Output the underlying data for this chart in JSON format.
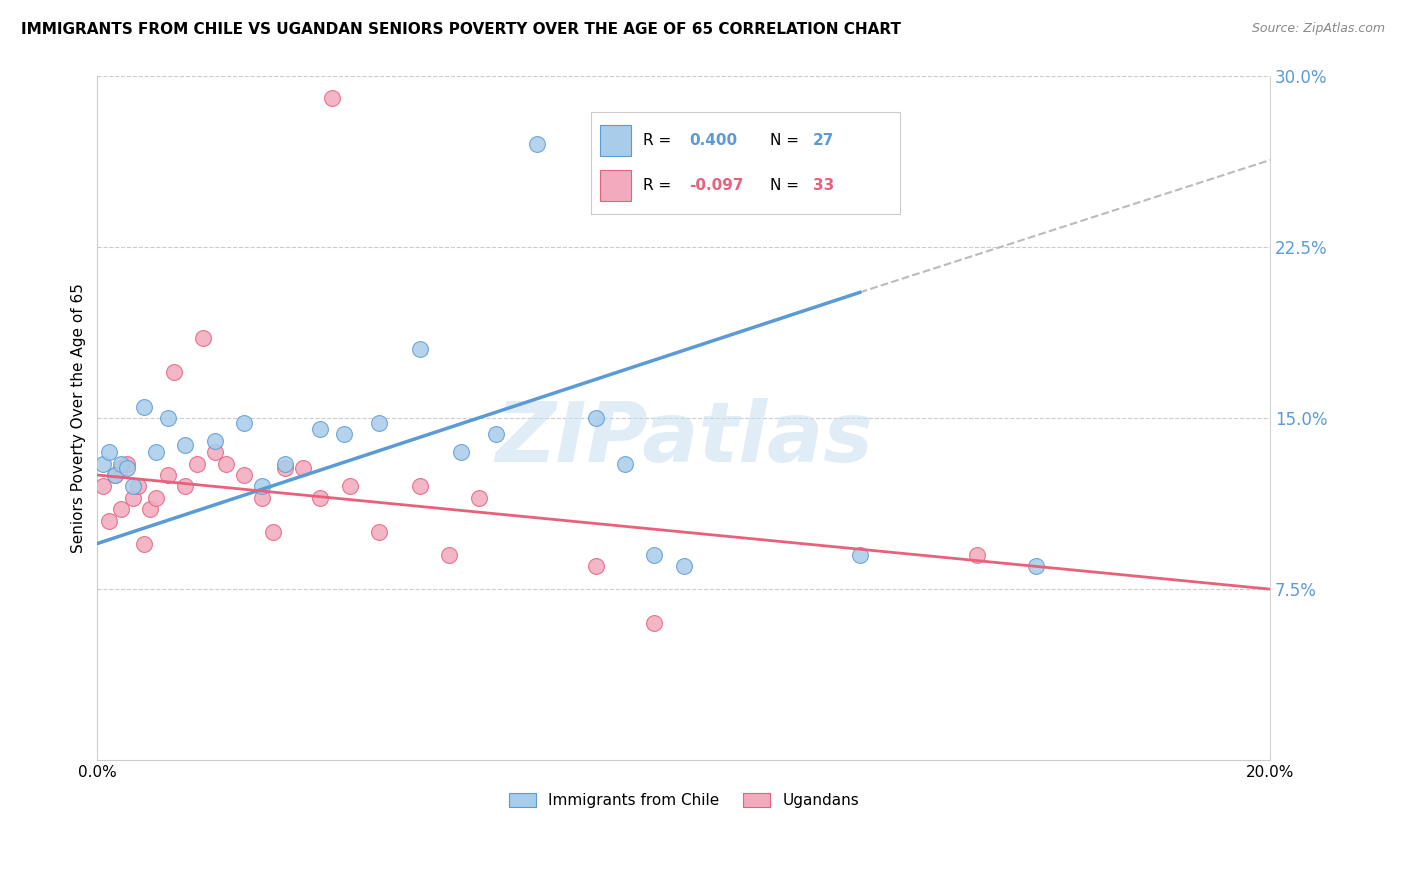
{
  "title": "IMMIGRANTS FROM CHILE VS UGANDAN SENIORS POVERTY OVER THE AGE OF 65 CORRELATION CHART",
  "source": "Source: ZipAtlas.com",
  "ylabel": "Seniors Poverty Over the Age of 65",
  "xmin": 0.0,
  "xmax": 0.2,
  "ymin": 0.0,
  "ymax": 0.3,
  "yticks": [
    0.075,
    0.15,
    0.225,
    0.3
  ],
  "ytick_labels": [
    "7.5%",
    "15.0%",
    "22.5%",
    "30.0%"
  ],
  "xticks": [
    0.0,
    0.05,
    0.1,
    0.15,
    0.2
  ],
  "xtick_labels": [
    "0.0%",
    "",
    "",
    "",
    "20.0%"
  ],
  "color_blue": "#A8CCEA",
  "color_pink": "#F2AABE",
  "line_blue": "#5B9BD5",
  "line_pink": "#E8607A",
  "line_gray": "#BBBBBB",
  "watermark": "ZIPatlas",
  "chile_x": [
    0.001,
    0.002,
    0.003,
    0.004,
    0.005,
    0.006,
    0.008,
    0.01,
    0.012,
    0.015,
    0.02,
    0.025,
    0.028,
    0.032,
    0.038,
    0.042,
    0.048,
    0.055,
    0.062,
    0.068,
    0.075,
    0.085,
    0.09,
    0.095,
    0.1,
    0.13,
    0.16
  ],
  "chile_y": [
    0.13,
    0.135,
    0.125,
    0.13,
    0.128,
    0.12,
    0.155,
    0.135,
    0.15,
    0.138,
    0.14,
    0.148,
    0.12,
    0.13,
    0.145,
    0.143,
    0.148,
    0.18,
    0.135,
    0.143,
    0.27,
    0.15,
    0.13,
    0.09,
    0.085,
    0.09,
    0.085
  ],
  "uganda_x": [
    0.001,
    0.002,
    0.003,
    0.004,
    0.004,
    0.005,
    0.006,
    0.007,
    0.008,
    0.009,
    0.01,
    0.012,
    0.013,
    0.015,
    0.017,
    0.018,
    0.02,
    0.022,
    0.025,
    0.028,
    0.03,
    0.032,
    0.035,
    0.038,
    0.04,
    0.043,
    0.048,
    0.055,
    0.06,
    0.065,
    0.085,
    0.095,
    0.15
  ],
  "uganda_y": [
    0.12,
    0.105,
    0.125,
    0.11,
    0.128,
    0.13,
    0.115,
    0.12,
    0.095,
    0.11,
    0.115,
    0.125,
    0.17,
    0.12,
    0.13,
    0.185,
    0.135,
    0.13,
    0.125,
    0.115,
    0.1,
    0.128,
    0.128,
    0.115,
    0.29,
    0.12,
    0.1,
    0.12,
    0.09,
    0.115,
    0.085,
    0.06,
    0.09
  ],
  "blue_line_x": [
    0.0,
    0.13
  ],
  "blue_line_y": [
    0.095,
    0.205
  ],
  "pink_line_x": [
    0.0,
    0.2
  ],
  "pink_line_y": [
    0.125,
    0.075
  ],
  "dash_line_x": [
    0.13,
    0.2
  ],
  "dash_line_y": [
    0.205,
    0.263
  ]
}
